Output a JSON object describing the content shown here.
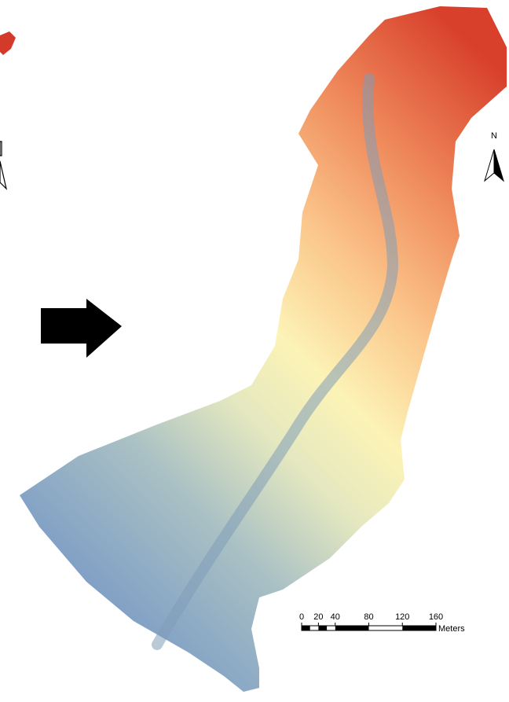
{
  "north_arrow": {
    "label": "N"
  },
  "scale_bar": {
    "ticks": [
      0,
      20,
      40,
      80,
      120,
      160
    ],
    "unit": "Meters"
  }
}
